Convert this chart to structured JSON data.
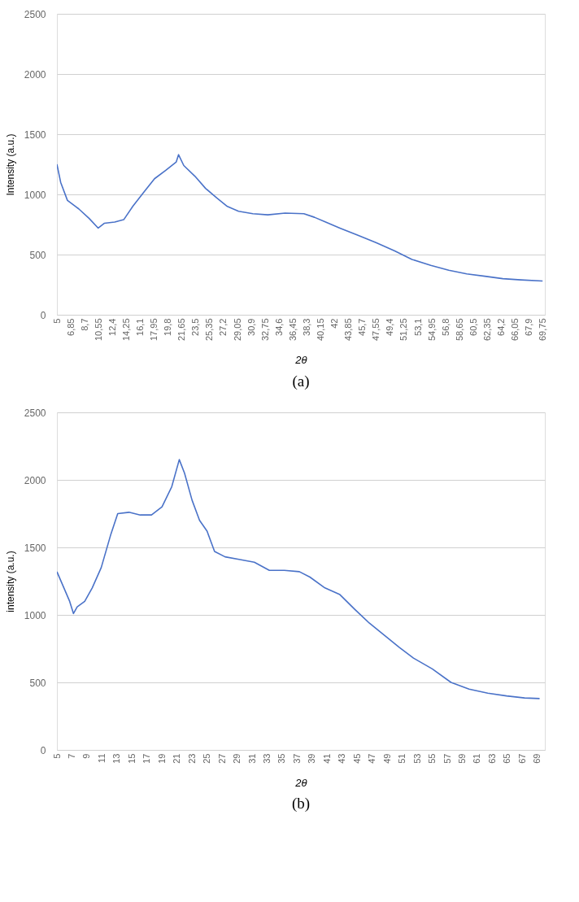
{
  "chart_data": [
    {
      "type": "line",
      "title": "(a)",
      "xlabel": "2θ",
      "ylabel": "Intensity (a.u.)",
      "grid": "y",
      "xlim": [
        5,
        70
      ],
      "ylim": [
        0,
        2500
      ],
      "yticks": [
        0,
        500,
        1000,
        1500,
        2000,
        2500
      ],
      "xticks": [
        5,
        {
          "value": 6.85,
          "label": "6,85"
        },
        {
          "value": 8.7,
          "label": "8,7"
        },
        {
          "value": 10.55,
          "label": "10,55"
        },
        {
          "value": 12.4,
          "label": "12,4"
        },
        {
          "value": 14.25,
          "label": "14,25"
        },
        {
          "value": 16.1,
          "label": "16,1"
        },
        {
          "value": 17.95,
          "label": "17,95"
        },
        {
          "value": 19.8,
          "label": "19,8"
        },
        {
          "value": 21.65,
          "label": "21,65"
        },
        {
          "value": 23.5,
          "label": "23,5"
        },
        {
          "value": 25.35,
          "label": "25,35"
        },
        {
          "value": 27.2,
          "label": "27,2"
        },
        {
          "value": 29.05,
          "label": "29,05"
        },
        {
          "value": 30.9,
          "label": "30,9"
        },
        {
          "value": 32.75,
          "label": "32,75"
        },
        {
          "value": 34.6,
          "label": "34,6"
        },
        {
          "value": 36.45,
          "label": "36,45"
        },
        {
          "value": 38.3,
          "label": "38,3"
        },
        {
          "value": 40.15,
          "label": "40,15"
        },
        42,
        {
          "value": 43.85,
          "label": "43,85"
        },
        {
          "value": 45.7,
          "label": "45,7"
        },
        {
          "value": 47.55,
          "label": "47,55"
        },
        {
          "value": 49.4,
          "label": "49,4"
        },
        {
          "value": 51.25,
          "label": "51,25"
        },
        {
          "value": 53.1,
          "label": "53,1"
        },
        {
          "value": 54.95,
          "label": "54,95"
        },
        {
          "value": 56.8,
          "label": "56,8"
        },
        {
          "value": 58.65,
          "label": "58,65"
        },
        {
          "value": 60.5,
          "label": "60,5"
        },
        {
          "value": 62.35,
          "label": "62,35"
        },
        {
          "value": 64.2,
          "label": "64,2"
        },
        {
          "value": 66.05,
          "label": "66,05"
        },
        {
          "value": 67.9,
          "label": "67,9"
        },
        {
          "value": 69.75,
          "label": "69,75"
        }
      ],
      "series": [
        {
          "color": "#4a72c8",
          "x": [
            5,
            5.5,
            6.4,
            7.9,
            9.3,
            10.5,
            11.3,
            12.7,
            13.9,
            15.1,
            16.6,
            18,
            19.5,
            20.9,
            21.2,
            21.9,
            23.4,
            24.8,
            26.3,
            27.7,
            29.2,
            31.1,
            33.1,
            35.4,
            37.9,
            39.3,
            40.8,
            42.7,
            45.1,
            47.5,
            50,
            52.3,
            54.8,
            57.2,
            59.6,
            62,
            64.4,
            66.8,
            69.7
          ],
          "values": [
            1250,
            1100,
            950,
            880,
            800,
            720,
            760,
            770,
            790,
            900,
            1020,
            1130,
            1200,
            1270,
            1330,
            1240,
            1150,
            1050,
            970,
            900,
            860,
            840,
            830,
            845,
            840,
            810,
            770,
            720,
            660,
            600,
            530,
            460,
            410,
            370,
            340,
            320,
            300,
            290,
            280
          ]
        }
      ]
    },
    {
      "type": "line",
      "title": "(b)",
      "xlabel": "2θ",
      "ylabel": "intensity (a.u.)",
      "grid": "y",
      "xlim": [
        5,
        70
      ],
      "ylim": [
        0,
        2500
      ],
      "yticks": [
        0,
        500,
        1000,
        1500,
        2000,
        2500
      ],
      "xticks": [
        5,
        7,
        9,
        11,
        13,
        15,
        17,
        19,
        21,
        23,
        25,
        27,
        29,
        31,
        33,
        35,
        37,
        39,
        41,
        43,
        45,
        47,
        49,
        51,
        53,
        55,
        57,
        59,
        61,
        63,
        65,
        67,
        69
      ],
      "series": [
        {
          "color": "#4a72c8",
          "x": [
            5,
            5.7,
            6.7,
            7.2,
            7.7,
            8.7,
            9.7,
            10.9,
            12.2,
            13.1,
            14.6,
            16.1,
            17.6,
            19,
            20.3,
            21.3,
            22,
            23,
            24,
            25,
            26,
            27.4,
            29.4,
            31.3,
            33.3,
            35.3,
            37.3,
            38.7,
            40.7,
            42.7,
            44.7,
            46.6,
            48.6,
            50.6,
            52.5,
            55,
            57.5,
            59.9,
            62.4,
            64.9,
            67.3,
            69.3
          ],
          "values": [
            1320,
            1230,
            1100,
            1010,
            1060,
            1100,
            1200,
            1350,
            1600,
            1750,
            1760,
            1740,
            1740,
            1800,
            1950,
            2150,
            2050,
            1850,
            1700,
            1620,
            1470,
            1430,
            1410,
            1390,
            1330,
            1330,
            1320,
            1280,
            1200,
            1150,
            1040,
            940,
            850,
            760,
            680,
            600,
            500,
            450,
            420,
            400,
            385,
            380
          ]
        }
      ]
    }
  ]
}
